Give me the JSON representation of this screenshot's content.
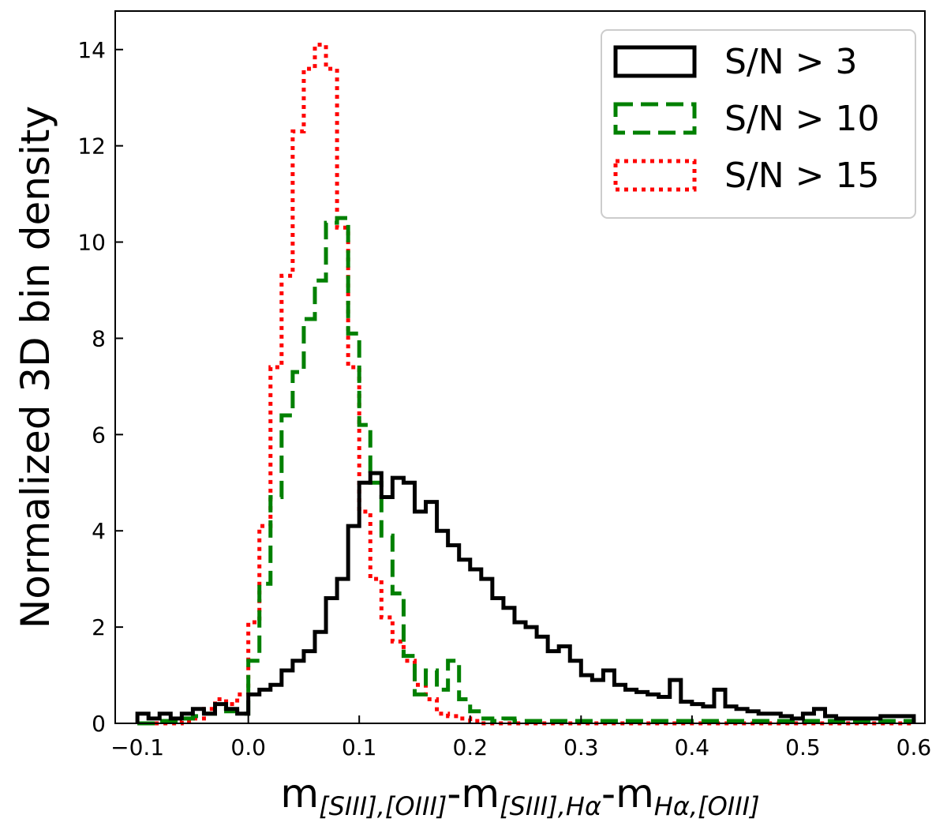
{
  "chart_data": {
    "type": "histogram-step",
    "title": "",
    "ylabel": "Normalized 3D bin density",
    "xlabel": {
      "t1": "m",
      "s1": "[SIII],[OIII]",
      "t2": "-m",
      "s2": "[SIII],Hα",
      "t3": "-m",
      "s3": "Hα,[OIII]"
    },
    "xlim": [
      -0.12,
      0.61
    ],
    "ylim": [
      0,
      14.8
    ],
    "xticks": [
      -0.1,
      0.0,
      0.1,
      0.2,
      0.3,
      0.4,
      0.5,
      0.6
    ],
    "xtick_labels": [
      "−0.1",
      "0.0",
      "0.1",
      "0.2",
      "0.3",
      "0.4",
      "0.5",
      "0.6"
    ],
    "yticks": [
      0,
      2,
      4,
      6,
      8,
      10,
      12,
      14
    ],
    "ytick_labels": [
      "0",
      "2",
      "4",
      "6",
      "8",
      "10",
      "12",
      "14"
    ],
    "bin_start": -0.1,
    "bin_width": 0.01,
    "legend_position": "upper right",
    "series": [
      {
        "name": "S/N > 3",
        "label": "S/N > 3",
        "color": "#000000",
        "style": "solid",
        "values": [
          0.2,
          0.1,
          0.2,
          0.1,
          0.2,
          0.3,
          0.2,
          0.4,
          0.3,
          0.2,
          0.6,
          0.7,
          0.8,
          1.1,
          1.3,
          1.5,
          1.9,
          2.6,
          3.0,
          4.1,
          5.0,
          5.2,
          4.7,
          5.1,
          5.0,
          4.4,
          4.6,
          4.0,
          3.7,
          3.4,
          3.2,
          3.0,
          2.6,
          2.4,
          2.1,
          2.0,
          1.8,
          1.5,
          1.6,
          1.3,
          1.0,
          0.9,
          1.1,
          0.8,
          0.7,
          0.65,
          0.6,
          0.55,
          0.9,
          0.45,
          0.4,
          0.35,
          0.7,
          0.35,
          0.3,
          0.25,
          0.2,
          0.2,
          0.15,
          0.1,
          0.2,
          0.3,
          0.15,
          0.1,
          0.1,
          0.1,
          0.1,
          0.15,
          0.15,
          0.15
        ]
      },
      {
        "name": "S/N > 10",
        "label": "S/N > 10",
        "color": "#008000",
        "style": "dashed",
        "values": [
          0.0,
          0.0,
          0.05,
          0.05,
          0.1,
          0.15,
          0.2,
          0.3,
          0.25,
          0.2,
          1.3,
          2.9,
          4.7,
          6.4,
          7.3,
          8.4,
          9.2,
          10.4,
          10.5,
          8.1,
          6.2,
          5.0,
          3.9,
          2.7,
          1.4,
          0.6,
          1.1,
          0.7,
          1.3,
          0.5,
          0.25,
          0.1,
          0.05,
          0.1,
          0.05,
          0.05,
          0.05,
          0.05,
          0.05,
          0.05,
          0.05,
          0.05,
          0.05,
          0.05,
          0.05,
          0.05,
          0.05,
          0.05,
          0.05,
          0.05,
          0.05,
          0.05,
          0.05,
          0.05,
          0.05,
          0.05,
          0.05,
          0.05,
          0.05,
          0.05,
          0.05,
          0.05,
          0.05,
          0.05,
          0.05,
          0.05,
          0.05,
          0.05,
          0.05,
          0.05
        ]
      },
      {
        "name": "S/N > 15",
        "label": "S/N > 15",
        "color": "#ff0000",
        "style": "dotted",
        "values": [
          0.0,
          0.0,
          0.0,
          0.0,
          0.05,
          0.1,
          0.3,
          0.5,
          0.4,
          0.6,
          2.1,
          4.1,
          7.4,
          9.3,
          12.3,
          13.6,
          14.1,
          13.6,
          10.3,
          7.4,
          4.4,
          3.0,
          2.2,
          1.7,
          1.3,
          0.8,
          0.5,
          0.2,
          0.15,
          0.1,
          0.05,
          0.0,
          0.0,
          0.0,
          0.0,
          0.0,
          0.0,
          0.0,
          0.0,
          0.0,
          0.0,
          0.0,
          0.0,
          0.0,
          0.0,
          0.0,
          0.0,
          0.0,
          0.0,
          0.0,
          0.0,
          0.0,
          0.0,
          0.0,
          0.0,
          0.0,
          0.0,
          0.0,
          0.0,
          0.0,
          0.0,
          0.0,
          0.0,
          0.0,
          0.0,
          0.0,
          0.0,
          0.0,
          0.0,
          0.0
        ]
      }
    ]
  }
}
